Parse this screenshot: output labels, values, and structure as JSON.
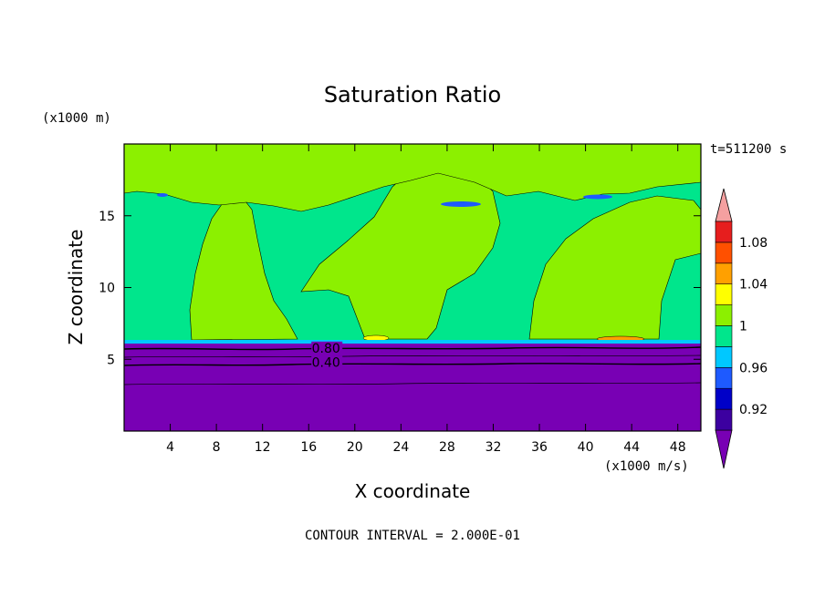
{
  "chart_data": {
    "type": "heatmap",
    "title": "Saturation Ratio",
    "xlabel": "X coordinate",
    "ylabel": "Z coordinate",
    "x_unit": "(x1000 m/s)",
    "y_unit": "(x1000 m)",
    "time_label": "t=511200 s",
    "footer": "CONTOUR INTERVAL = 2.000E-01",
    "xlim": [
      0,
      50
    ],
    "ylim": [
      0,
      20
    ],
    "x_ticks": [
      4,
      8,
      12,
      16,
      20,
      24,
      28,
      32,
      36,
      40,
      44,
      48
    ],
    "y_ticks": [
      5,
      10,
      15
    ],
    "contour_labels": [
      {
        "text": "0.80",
        "x": 17.5,
        "y": 5.6
      },
      {
        "text": "0.40",
        "x": 17.5,
        "y": 4.6
      }
    ],
    "colorbar": {
      "levels": [
        0.9,
        0.92,
        0.94,
        0.96,
        0.98,
        1.0,
        1.02,
        1.04,
        1.06,
        1.08,
        1.1
      ],
      "tick_labels": [
        "0.92",
        "0.96",
        "1",
        "1.04",
        "1.08"
      ],
      "colors": [
        "#3c00a0",
        "#0000c8",
        "#1e5aff",
        "#00c8ff",
        "#00e68c",
        "#8cf000",
        "#ffff00",
        "#ffa000",
        "#ff5000",
        "#e61e1e"
      ],
      "under_color": "#7800b4",
      "over_color": "#f5a0a0"
    },
    "regions": {
      "lower_layer_top_z": 6.1,
      "lower_layer_value": "< 0.90",
      "upper_background_value": "0.98-1.00",
      "plumes_value": "1.00-1.02"
    }
  }
}
